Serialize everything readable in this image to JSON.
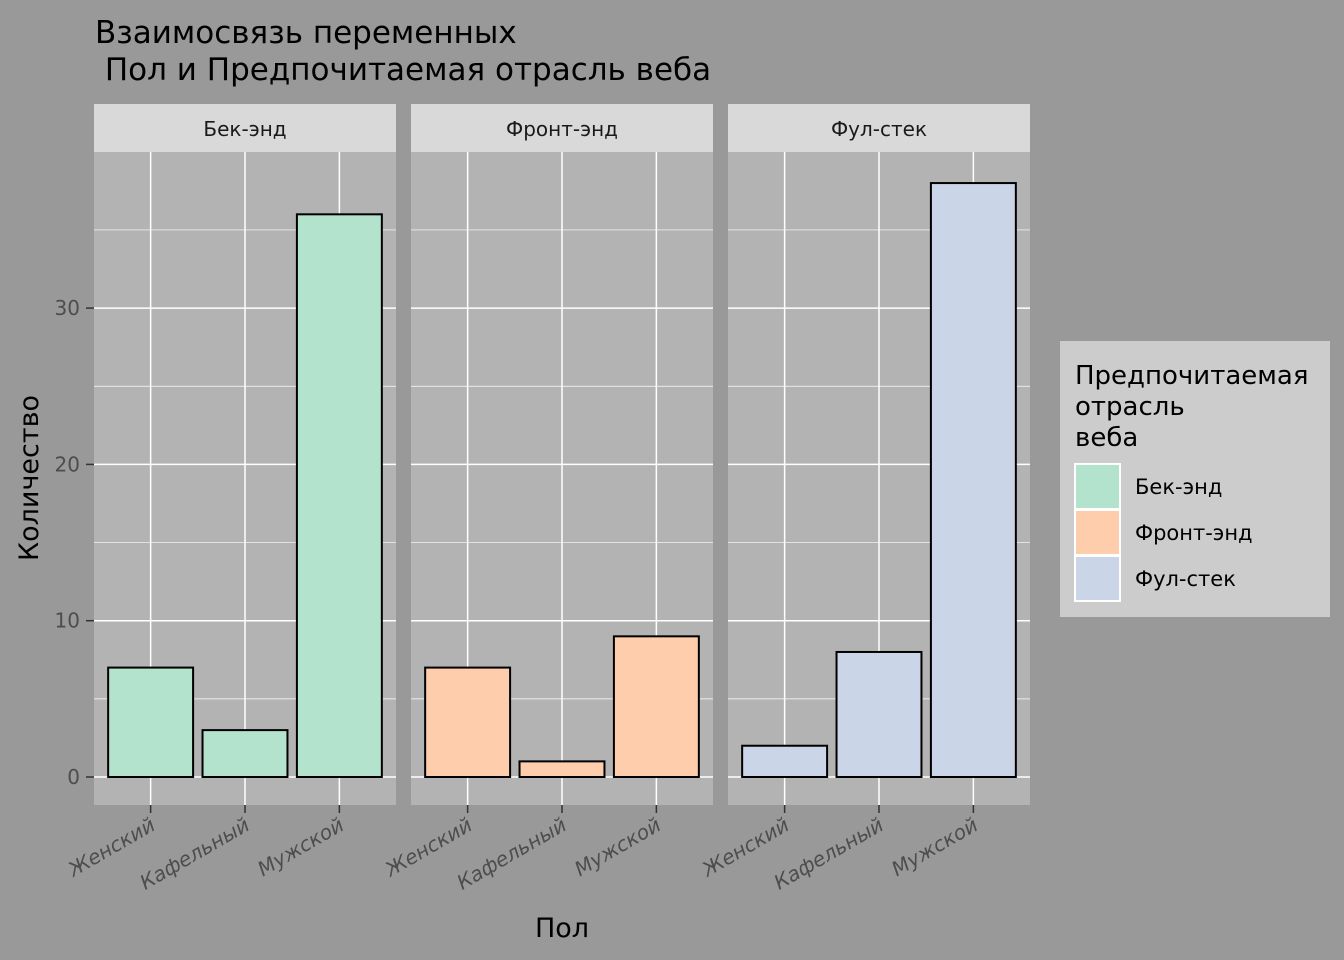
{
  "chart_data": {
    "type": "bar",
    "title_lines": [
      "Взаимосвязь переменных",
      " Пол и Предпочитаемая отрасль веба"
    ],
    "xlabel": "Пол",
    "ylabel": "Количество",
    "ylim": [
      0,
      38
    ],
    "yticks": [
      0,
      10,
      20,
      30
    ],
    "grid": true,
    "categories": [
      "Женский",
      "Кафельный",
      "Мужской"
    ],
    "facets": [
      {
        "name": "Бек-энд",
        "color": "#b3e2cd",
        "values": [
          7,
          3,
          36
        ]
      },
      {
        "name": "Фронт-энд",
        "color": "#fdcdac",
        "values": [
          7,
          1,
          9
        ]
      },
      {
        "name": "Фул-стек",
        "color": "#cbd5e8",
        "values": [
          2,
          8,
          38
        ]
      }
    ],
    "legend": {
      "title_lines": [
        "Предпочитаемая",
        "отрасль",
        "веба"
      ],
      "placement": "right",
      "items": [
        {
          "label": "Бек-энд",
          "color": "#b3e2cd"
        },
        {
          "label": "Фронт-энд",
          "color": "#fdcdac"
        },
        {
          "label": "Фул-стек",
          "color": "#cbd5e8"
        }
      ]
    },
    "colors": {
      "background": "#999999",
      "panel": "#b3b3b3",
      "strip": "#d9d9d9",
      "legend_background": "#cccccc",
      "gridline": "#ffffff",
      "bar_outline": "#000000"
    }
  }
}
